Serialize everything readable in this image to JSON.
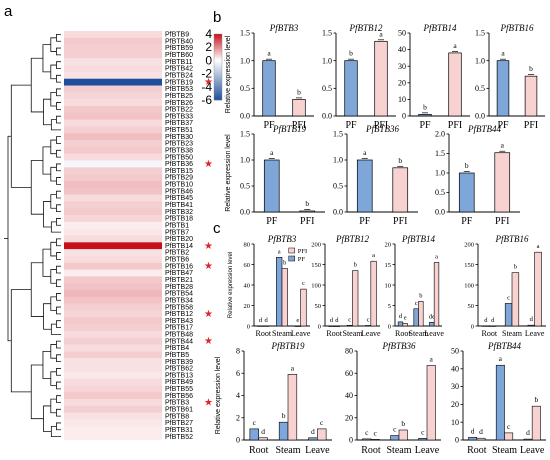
{
  "panels": {
    "a": "a",
    "b": "b",
    "c": "c"
  },
  "colors": {
    "pf": "#7ea6d8",
    "pfi": "#f8d2d0",
    "heat_high": "#c8101a",
    "heat_mid": "#ffffff",
    "heat_low": "#1f4e9a",
    "star": "#e0262a"
  },
  "chart_data": [
    {
      "id": "heatmap",
      "type": "heatmap",
      "genes": [
        "PfBTB9",
        "PfBTB40",
        "PfBTB59",
        "PfBTB60",
        "PfBTB11",
        "PfBTB42",
        "PfBTB24",
        "PfBTB19",
        "PfBTB53",
        "PfBTB25",
        "PfBTB26",
        "PfBTB22",
        "PfBTB33",
        "PfBTB37",
        "PfBTB51",
        "PfBTB30",
        "PfBTB23",
        "PfBTB38",
        "PfBTB50",
        "PfBTB36",
        "PfBTB15",
        "PfBTB29",
        "PfBTB10",
        "PfBTB46",
        "PfBTB45",
        "PfBTB41",
        "PfBTB32",
        "PfBTB18",
        "PfBTB1",
        "PfBTB7",
        "PfBTB20",
        "PfBTB14",
        "PfBTB2",
        "PfBTB6",
        "PfBTB16",
        "PfBTB47",
        "PfBTB21",
        "PfBTB28",
        "PfBTB54",
        "PfBTB34",
        "PfBTB58",
        "PfBTB12",
        "PfBTB43",
        "PfBTB17",
        "PfBTB48",
        "PfBTB44",
        "PfBTB4",
        "PfBTB5",
        "PfBTB39",
        "PfBTB62",
        "PfBTB13",
        "PfBTB49",
        "PfBTB55",
        "PfBTB56",
        "PfBTB3",
        "PfBTB61",
        "PfBTB8",
        "PfBTB27",
        "PfBTB31",
        "PfBTB52"
      ],
      "values": [
        0.6,
        0.9,
        0.8,
        0.8,
        0.5,
        0.6,
        0.5,
        -6,
        0.8,
        0.7,
        0.6,
        0.9,
        1.0,
        0.6,
        0.8,
        1.1,
        0.8,
        0.9,
        0.6,
        -0.3,
        0.8,
        0.9,
        1.1,
        1.0,
        0.6,
        0.8,
        0.9,
        0.7,
        0.3,
        0.4,
        0.6,
        4.2,
        0.5,
        0.6,
        0.9,
        0.3,
        0.9,
        1.0,
        1.2,
        1.0,
        0.8,
        0.7,
        0.9,
        0.8,
        0.6,
        0.8,
        0.6,
        0.8,
        0.5,
        0.5,
        0.4,
        0.6,
        0.7,
        0.9,
        0.6,
        0.8,
        0.5,
        0.4,
        0.3,
        0.3
      ],
      "starred": [
        "PfBTB19",
        "PfBTB36",
        "PfBTB14",
        "PfBTB16",
        "PfBTB12",
        "PfBTB44",
        "PfBTB3"
      ],
      "colorbar_ticks": [
        "4",
        "2",
        "0",
        "-2",
        "-4",
        "-6"
      ],
      "vmin": -6,
      "vmax": 4
    },
    {
      "id": "b-PfBTB3",
      "type": "bar",
      "title": "PfBTB3",
      "categories": [
        "PF",
        "PFI"
      ],
      "values": [
        1.0,
        0.3
      ],
      "letters": [
        "a",
        "b"
      ],
      "ylim": [
        0,
        1.5
      ],
      "yticks": [
        "0.0",
        "0.5",
        "1.0",
        "1.5"
      ],
      "ylabel": "Relative expression level"
    },
    {
      "id": "b-PfBTB12",
      "type": "bar",
      "title": "PfBTB12",
      "categories": [
        "PF",
        "PFI"
      ],
      "values": [
        1.0,
        1.35
      ],
      "letters": [
        "b",
        "a"
      ],
      "ylim": [
        0,
        1.5
      ],
      "yticks": [
        "0.0",
        "0.5",
        "1.0",
        "1.5"
      ],
      "ylabel": ""
    },
    {
      "id": "b-PfBTB14",
      "type": "bar",
      "title": "PfBTB14",
      "categories": [
        "PF",
        "PFI"
      ],
      "values": [
        1.0,
        38
      ],
      "letters": [
        "b",
        "a"
      ],
      "ylim": [
        0,
        50
      ],
      "yticks": [
        "0",
        "10",
        "20",
        "30",
        "40",
        "50"
      ],
      "ylabel": ""
    },
    {
      "id": "b-PfBTB16",
      "type": "bar",
      "title": "PfBTB16",
      "categories": [
        "PF",
        "PFI"
      ],
      "values": [
        1.0,
        0.72
      ],
      "letters": [
        "a",
        "b"
      ],
      "ylim": [
        0,
        1.5
      ],
      "yticks": [
        "0.0",
        "0.5",
        "1.0",
        "1.5"
      ],
      "ylabel": ""
    },
    {
      "id": "b-PfBTB19",
      "type": "bar",
      "title": "PfBTB19",
      "categories": [
        "PF",
        "PFI"
      ],
      "values": [
        1.0,
        0.02
      ],
      "letters": [
        "a",
        "b"
      ],
      "ylim": [
        0,
        1.5
      ],
      "yticks": [
        "0.0",
        "0.5",
        "1.0",
        "1.5"
      ],
      "ylabel": "Relative expression level"
    },
    {
      "id": "b-PfBTB36",
      "type": "bar",
      "title": "PfBTB36",
      "categories": [
        "PF",
        "PFI"
      ],
      "values": [
        1.0,
        0.85
      ],
      "letters": [
        "a",
        "b"
      ],
      "ylim": [
        0,
        1.5
      ],
      "yticks": [
        "0.0",
        "0.5",
        "1.0",
        "1.5"
      ],
      "ylabel": ""
    },
    {
      "id": "b-PfBTB44",
      "type": "bar",
      "title": "PfBTB44",
      "categories": [
        "PF",
        "PFI"
      ],
      "values": [
        1.0,
        1.52
      ],
      "letters": [
        "b",
        "a"
      ],
      "ylim": [
        0,
        2.0
      ],
      "yticks": [
        "0.0",
        "0.5",
        "1.0",
        "1.5",
        "2.0"
      ],
      "ylabel": ""
    },
    {
      "id": "c-PfBTB3",
      "type": "bar",
      "title": "PfBTB3",
      "categories": [
        "Root",
        "Steam",
        "Leave"
      ],
      "series": [
        {
          "name": "PF",
          "values": [
            0.2,
            67,
            0.1
          ]
        },
        {
          "name": "PFI",
          "values": [
            0.2,
            56,
            36
          ]
        }
      ],
      "letters": [
        [
          "d",
          "d"
        ],
        [
          "a",
          "b"
        ],
        [
          "e",
          "c"
        ]
      ],
      "ylim": [
        0,
        80
      ],
      "yticks": [
        "0",
        "20",
        "40",
        "60",
        "80"
      ],
      "ylabel": "Relative expression level",
      "legend": "top-right"
    },
    {
      "id": "c-PfBTB12",
      "type": "bar",
      "title": "PfBTB12",
      "categories": [
        "Root",
        "Steam",
        "Leave"
      ],
      "series": [
        {
          "name": "PF",
          "values": [
            0.3,
            1.5,
            1.2
          ]
        },
        {
          "name": "PFI",
          "values": [
            0.2,
            135,
            158
          ]
        }
      ],
      "letters": [
        [
          "d",
          "d"
        ],
        [
          "c",
          "b"
        ],
        [
          "c",
          "a"
        ]
      ],
      "ylim": [
        0,
        200
      ],
      "yticks": [
        "0",
        "50",
        "100",
        "150",
        "200"
      ],
      "ylabel": ""
    },
    {
      "id": "c-PfBTB14",
      "type": "bar",
      "title": "PfBTB14",
      "categories": [
        "Root",
        "Steam",
        "Leave"
      ],
      "series": [
        {
          "name": "PF",
          "values": [
            1.0,
            4.2,
            0.9
          ]
        },
        {
          "name": "PFI",
          "values": [
            0.6,
            6.0,
            15.5
          ]
        }
      ],
      "letters": [
        [
          "d",
          "e"
        ],
        [
          "c",
          "b"
        ],
        [
          "de",
          "a"
        ]
      ],
      "ylim": [
        0,
        20
      ],
      "yticks": [
        "0",
        "5",
        "10",
        "15",
        "20"
      ],
      "ylabel": ""
    },
    {
      "id": "c-PfBTB16",
      "type": "bar",
      "title": "PfBTB16",
      "categories": [
        "Root",
        "Steam",
        "Leave"
      ],
      "series": [
        {
          "name": "PF",
          "values": [
            0.5,
            55,
            2
          ]
        },
        {
          "name": "PFI",
          "values": [
            0.4,
            130,
            180
          ]
        }
      ],
      "letters": [
        [
          "d",
          "d"
        ],
        [
          "c",
          "b"
        ],
        [
          "d",
          "a"
        ]
      ],
      "ylim": [
        0,
        200
      ],
      "yticks": [
        "0",
        "50",
        "100",
        "150",
        "200"
      ],
      "ylabel": ""
    },
    {
      "id": "c-PfBTB19",
      "type": "bar",
      "title": "PfBTB19",
      "categories": [
        "Root",
        "Steam",
        "Leave"
      ],
      "series": [
        {
          "name": "PF",
          "values": [
            1.0,
            1.6,
            0.2
          ]
        },
        {
          "name": "PFI",
          "values": [
            0.2,
            5.9,
            1.0
          ]
        }
      ],
      "letters": [
        [
          "c",
          "d"
        ],
        [
          "b",
          "a"
        ],
        [
          "d",
          "c"
        ]
      ],
      "ylim": [
        0,
        8
      ],
      "yticks": [
        "0",
        "2",
        "4",
        "6",
        "8"
      ],
      "ylabel": "Relative expression level"
    },
    {
      "id": "c-PfBTB36",
      "type": "bar",
      "title": "PfBTB36",
      "categories": [
        "Root",
        "Steam",
        "Leave"
      ],
      "series": [
        {
          "name": "PF",
          "values": [
            1.0,
            4.0,
            1.5
          ]
        },
        {
          "name": "PFI",
          "values": [
            0.5,
            9.0,
            67
          ]
        }
      ],
      "letters": [
        [
          "c",
          "c"
        ],
        [
          "c",
          "b"
        ],
        [
          "c",
          "a"
        ]
      ],
      "ylim": [
        0,
        80
      ],
      "yticks": [
        "0",
        "20",
        "40",
        "60",
        "80"
      ],
      "ylabel": ""
    },
    {
      "id": "c-PfBTB44",
      "type": "bar",
      "title": "PfBTB44",
      "categories": [
        "Root",
        "Steam",
        "Leave"
      ],
      "series": [
        {
          "name": "PF",
          "values": [
            1.5,
            42,
            0.5
          ]
        },
        {
          "name": "PFI",
          "values": [
            1.0,
            4.0,
            19
          ]
        }
      ],
      "letters": [
        [
          "d",
          "d"
        ],
        [
          "a",
          "c"
        ],
        [
          "d",
          "b"
        ]
      ],
      "ylim": [
        0,
        50
      ],
      "yticks": [
        "0",
        "10",
        "20",
        "30",
        "40",
        "50"
      ],
      "ylabel": ""
    }
  ]
}
